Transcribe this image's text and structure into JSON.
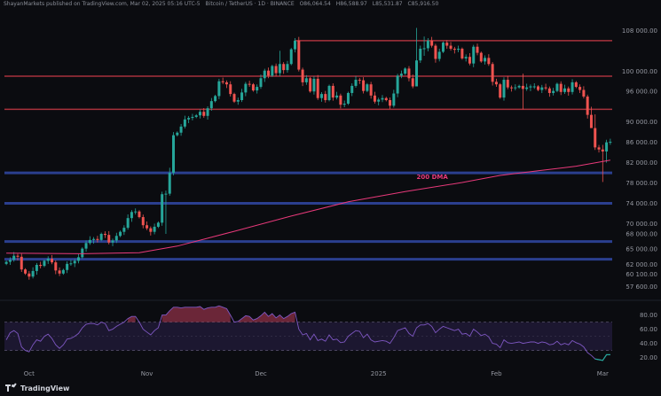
{
  "header": {
    "publisher": "ShayanMarkets published on TradingView.com, Mar 02, 2025 05:16 UTC-5",
    "symbol": "Bitcoin / TetherUS · 1D · BINANCE",
    "ohlc": [
      "O86,064.54",
      "H86,588.97",
      "L85,531.87",
      "C85,916.50"
    ]
  },
  "chart_data": {
    "type": "candlestick",
    "title": "",
    "xlabel": "",
    "ylabel": "",
    "x_ticks": [
      {
        "label": "Oct",
        "i": 6
      },
      {
        "label": "Nov",
        "i": 37
      },
      {
        "label": "Dec",
        "i": 67
      },
      {
        "label": "2025",
        "i": 98
      },
      {
        "label": "Feb",
        "i": 129
      },
      {
        "label": "Mar",
        "i": 157
      }
    ],
    "y_ticks": [
      {
        "label": "108 000.00",
        "value": 108000
      },
      {
        "label": "100 000.00",
        "value": 100000
      },
      {
        "label": "96 000.00",
        "value": 96000
      },
      {
        "label": "90 000.00",
        "value": 90000
      },
      {
        "label": "86 000.00",
        "value": 86000
      },
      {
        "label": "82 000.00",
        "value": 82000
      },
      {
        "label": "78 000.00",
        "value": 78000
      },
      {
        "label": "74 000.00",
        "value": 74000
      },
      {
        "label": "70 000.00",
        "value": 70000
      },
      {
        "label": "68 000.00",
        "value": 68000
      },
      {
        "label": "65 000.00",
        "value": 65000
      },
      {
        "label": "62 000.00",
        "value": 62000
      },
      {
        "label": "60 100.00",
        "value": 60100
      },
      {
        "label": "57 600.00",
        "value": 57600
      }
    ],
    "ylim": [
      56500,
      110500
    ],
    "resistance_levels": [
      106000,
      99000,
      92500
    ],
    "support_levels": [
      80000,
      74000,
      66500,
      63000
    ],
    "closes": [
      62500,
      62900,
      63700,
      63500,
      61000,
      60200,
      59600,
      60700,
      61900,
      61700,
      62700,
      63100,
      62400,
      60800,
      60200,
      60900,
      62100,
      62200,
      62700,
      63400,
      65100,
      66200,
      66800,
      67000,
      66800,
      68000,
      67800,
      66300,
      66700,
      67600,
      68400,
      69200,
      71100,
      72300,
      72400,
      71300,
      69700,
      69100,
      68400,
      69400,
      70200,
      75800,
      75900,
      80000,
      87400,
      87900,
      89100,
      90500,
      90800,
      91000,
      91300,
      92000,
      91200,
      92700,
      94100,
      95100,
      98000,
      97800,
      97400,
      95500,
      94000,
      94300,
      95800,
      97500,
      97400,
      96200,
      96900,
      98600,
      100100,
      99100,
      101000,
      99600,
      101400,
      100200,
      101400,
      104300,
      106000,
      100300,
      97800,
      98600,
      96000,
      98500,
      94700,
      95500,
      94300,
      97100,
      94800,
      95200,
      93400,
      93600,
      95700,
      97100,
      98300,
      98200,
      96100,
      97400,
      95200,
      94000,
      94400,
      94700,
      94300,
      93200,
      95600,
      99100,
      99500,
      100500,
      98600,
      97000,
      102100,
      104400,
      104500,
      106000,
      105000,
      102400,
      103800,
      105600,
      105000,
      104400,
      104200,
      104400,
      102500,
      102800,
      101500,
      104800,
      103600,
      101900,
      102600,
      101400,
      97900,
      97400,
      94800,
      98300,
      96800,
      96700,
      96800,
      97100,
      96500,
      96800,
      97000,
      97000,
      96300,
      96800,
      96600,
      95700,
      96100,
      97500,
      95900,
      96600,
      95900,
      97800,
      96900,
      96300,
      95000,
      91400,
      88800,
      85000,
      84600,
      84200,
      86000,
      86100
    ],
    "spikes": {
      "42": [
        68000,
        76500
      ],
      "43": [
        75500,
        81000
      ],
      "72": [
        99000,
        104000
      ],
      "108": [
        98000,
        108500
      ],
      "110": [
        103000,
        106800
      ],
      "136": [
        92500,
        99500
      ],
      "154": [
        89000,
        93000
      ],
      "155": [
        84500,
        91500
      ],
      "157": [
        78200,
        85500
      ],
      "158": [
        82000,
        86500
      ]
    },
    "series": [
      {
        "name": "200 DMA",
        "points": [
          [
            0,
            64200
          ],
          [
            20,
            64100
          ],
          [
            35,
            64300
          ],
          [
            45,
            65600
          ],
          [
            60,
            68500
          ],
          [
            75,
            71500
          ],
          [
            90,
            74300
          ],
          [
            105,
            76300
          ],
          [
            120,
            78100
          ],
          [
            130,
            79500
          ],
          [
            140,
            80400
          ],
          [
            150,
            81300
          ],
          [
            159,
            82500
          ]
        ]
      }
    ],
    "rsi": {
      "yticks": [
        80,
        60,
        40,
        20
      ],
      "ylim": [
        12,
        92
      ],
      "band": [
        70,
        30
      ],
      "values": [
        45,
        55,
        58,
        54,
        35,
        30,
        28,
        38,
        45,
        43,
        50,
        53,
        47,
        38,
        33,
        38,
        46,
        47,
        50,
        54,
        62,
        67,
        68,
        68,
        66,
        70,
        68,
        58,
        60,
        64,
        67,
        70,
        75,
        78,
        78,
        70,
        60,
        56,
        52,
        58,
        62,
        80,
        80,
        86,
        91,
        91,
        90,
        91,
        91,
        91,
        91,
        92,
        88,
        90,
        91,
        91,
        93,
        91,
        89,
        80,
        70,
        71,
        75,
        79,
        78,
        73,
        75,
        79,
        84,
        78,
        82,
        76,
        80,
        75,
        78,
        82,
        84,
        60,
        52,
        54,
        45,
        53,
        44,
        46,
        43,
        52,
        45,
        46,
        41,
        42,
        50,
        54,
        58,
        57,
        48,
        53,
        45,
        42,
        43,
        44,
        43,
        40,
        48,
        58,
        60,
        62,
        54,
        50,
        62,
        66,
        66,
        68,
        64,
        55,
        60,
        64,
        62,
        60,
        58,
        60,
        53,
        54,
        50,
        60,
        56,
        51,
        53,
        49,
        40,
        39,
        34,
        45,
        41,
        40,
        41,
        42,
        40,
        41,
        42,
        42,
        40,
        42,
        41,
        38,
        39,
        43,
        38,
        40,
        38,
        44,
        41,
        39,
        35,
        27,
        23,
        18,
        17,
        16,
        24,
        24
      ]
    }
  }
}
